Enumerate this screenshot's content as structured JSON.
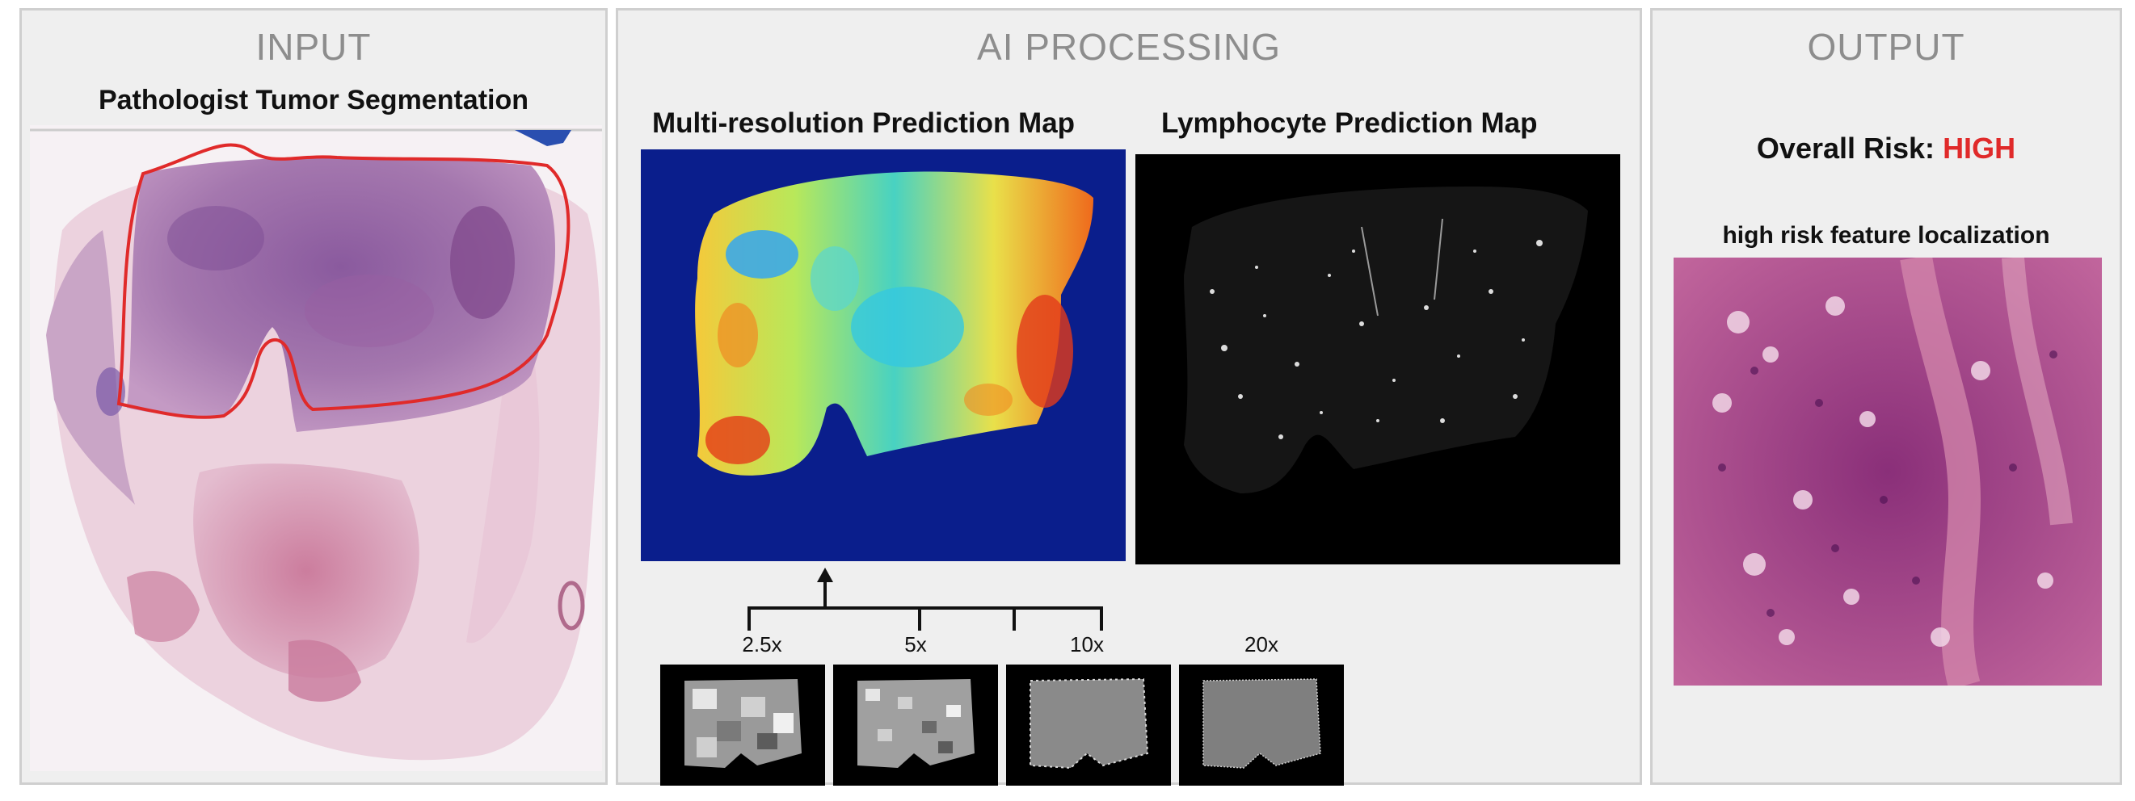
{
  "input": {
    "title": "INPUT",
    "subtitle": "Pathologist Tumor Segmentation"
  },
  "processing": {
    "title": "AI PROCESSING",
    "multires_title": "Multi-resolution Prediction Map",
    "lymph_title": "Lymphocyte Prediction Map",
    "scales": [
      "2.5x",
      "5x",
      "10x",
      "20x"
    ]
  },
  "output": {
    "title": "OUTPUT",
    "risk_label": "Overall Risk:",
    "risk_value": "HIGH",
    "localization_title": "high risk feature localization"
  },
  "colors": {
    "panel_bg": "#efefef",
    "tumor_outline": "#e02a2a",
    "risk_high": "#e02a2a",
    "heatmap_bg": "#0a1e8c"
  }
}
